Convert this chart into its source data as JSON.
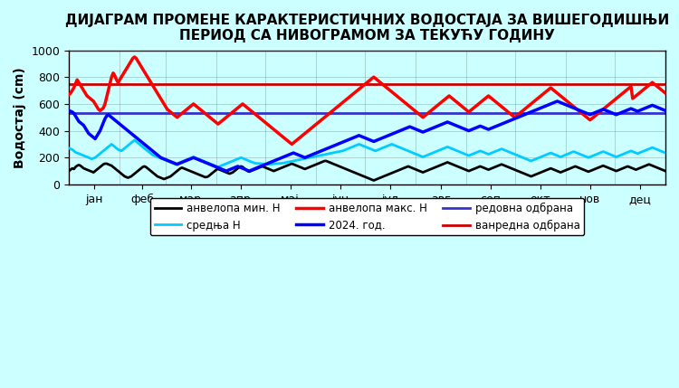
{
  "title": "ДИЈАГРАМ ПРОМЕНЕ КАРАКТЕРИСТИЧНИХ ВОДОСТАЈА ЗА ВИШЕГОДИШЊИ\nПЕРИОД СА НИВОГРАМОМ ЗА ТЕКУЋУ ГОДИНУ",
  "ylabel": "Водостај (cm)",
  "xlabel": "",
  "background_color": "#ccffff",
  "ylim": [
    0,
    1000
  ],
  "months": [
    "јан",
    "феб",
    "мар",
    "апр",
    "мај",
    "јун",
    "јул",
    "авг",
    "сеп",
    "окт",
    "нов",
    "дец"
  ],
  "redovna_odbrana": 530,
  "vanredna_odbrana": 750,
  "current_year_level": 530,
  "envelope_min": [
    100,
    110,
    120,
    115,
    130,
    140,
    145,
    140,
    130,
    120,
    115,
    110,
    105,
    100,
    95,
    90,
    100,
    110,
    120,
    130,
    140,
    150,
    155,
    155,
    150,
    145,
    140,
    130,
    120,
    110,
    100,
    90,
    80,
    70,
    60,
    55,
    50,
    55,
    60,
    70,
    80,
    90,
    100,
    110,
    120,
    130,
    135,
    130,
    120,
    110,
    100,
    90,
    80,
    70,
    60,
    55,
    50,
    45,
    40,
    45,
    50,
    55,
    60,
    70,
    80,
    90,
    100,
    110,
    120,
    125,
    120,
    115,
    110,
    105,
    100,
    95,
    90,
    85,
    80,
    75,
    70,
    65,
    60,
    55,
    55,
    60,
    70,
    80,
    90,
    100,
    110,
    115,
    110,
    105,
    100,
    95,
    90,
    85,
    80,
    85,
    90,
    100,
    110,
    120,
    130,
    135,
    130,
    120,
    110,
    100,
    95,
    100,
    105,
    110,
    115,
    120,
    125,
    130,
    135,
    130,
    125,
    120,
    115,
    110,
    105,
    100,
    105,
    110,
    115,
    120,
    125,
    130,
    135,
    140,
    145,
    150,
    155,
    150,
    145,
    140,
    135,
    130,
    125,
    120,
    115,
    120,
    125,
    130,
    135,
    140,
    145,
    150,
    155,
    160,
    165,
    170,
    175,
    175,
    170,
    165,
    160,
    155,
    150,
    145,
    140,
    135,
    130,
    125,
    120,
    115,
    110,
    105,
    100,
    95,
    90,
    85,
    80,
    75,
    70,
    65,
    60,
    55,
    50,
    45,
    40,
    35,
    30,
    35,
    40,
    45,
    50,
    55,
    60,
    65,
    70,
    75,
    80,
    85,
    90,
    95,
    100,
    105,
    110,
    115,
    120,
    125,
    130,
    135,
    130,
    125,
    120,
    115,
    110,
    105,
    100,
    95,
    90,
    95,
    100,
    105,
    110,
    115,
    120,
    125,
    130,
    135,
    140,
    145,
    150,
    155,
    160,
    165,
    160,
    155,
    150,
    145,
    140,
    135,
    130,
    125,
    120,
    115,
    110,
    105,
    100,
    105,
    110,
    115,
    120,
    125,
    130,
    135,
    130,
    125,
    120,
    115,
    110,
    115,
    120,
    125,
    130,
    135,
    140,
    145,
    150,
    145,
    140,
    135,
    130,
    125,
    120,
    115,
    110,
    105,
    100,
    95,
    90,
    85,
    80,
    75,
    70,
    65,
    60,
    65,
    70,
    75,
    80,
    85,
    90,
    95,
    100,
    105,
    110,
    115,
    120,
    115,
    110,
    105,
    100,
    95,
    90,
    95,
    100,
    105,
    110,
    115,
    120,
    125,
    130,
    135,
    130,
    125,
    120,
    115,
    110,
    105,
    100,
    95,
    100,
    105,
    110,
    115,
    120,
    125,
    130,
    135,
    140,
    135,
    130,
    125,
    120,
    115,
    110,
    105,
    100,
    105,
    110,
    115,
    120,
    125,
    130,
    135,
    130,
    125,
    120,
    115,
    110,
    115,
    120,
    125,
    130,
    135,
    140,
    145,
    150,
    145,
    140,
    135,
    130,
    125,
    120,
    115,
    110,
    105,
    100
  ],
  "envelope_max": [
    670,
    680,
    700,
    720,
    750,
    780,
    760,
    740,
    720,
    700,
    680,
    660,
    650,
    640,
    630,
    620,
    600,
    580,
    560,
    550,
    560,
    570,
    600,
    650,
    700,
    750,
    800,
    830,
    810,
    780,
    760,
    780,
    800,
    820,
    840,
    860,
    880,
    900,
    920,
    940,
    950,
    940,
    920,
    900,
    880,
    860,
    840,
    820,
    800,
    780,
    760,
    740,
    720,
    700,
    680,
    660,
    640,
    620,
    600,
    580,
    560,
    550,
    540,
    530,
    520,
    510,
    500,
    510,
    520,
    530,
    540,
    550,
    560,
    570,
    580,
    590,
    600,
    590,
    580,
    570,
    560,
    550,
    540,
    530,
    520,
    510,
    500,
    490,
    480,
    470,
    460,
    450,
    460,
    470,
    480,
    490,
    500,
    510,
    520,
    530,
    540,
    550,
    560,
    570,
    580,
    590,
    600,
    590,
    580,
    570,
    560,
    550,
    540,
    530,
    520,
    510,
    500,
    490,
    480,
    470,
    460,
    450,
    440,
    430,
    420,
    410,
    400,
    390,
    380,
    370,
    360,
    350,
    340,
    330,
    320,
    310,
    300,
    310,
    320,
    330,
    340,
    350,
    360,
    370,
    380,
    390,
    400,
    410,
    420,
    430,
    440,
    450,
    460,
    470,
    480,
    490,
    500,
    510,
    520,
    530,
    540,
    550,
    560,
    570,
    580,
    590,
    600,
    610,
    620,
    630,
    640,
    650,
    660,
    670,
    680,
    690,
    700,
    710,
    720,
    730,
    740,
    750,
    760,
    770,
    780,
    790,
    800,
    790,
    780,
    770,
    760,
    750,
    740,
    730,
    720,
    710,
    700,
    690,
    680,
    670,
    660,
    650,
    640,
    630,
    620,
    610,
    600,
    590,
    580,
    570,
    560,
    550,
    540,
    530,
    520,
    510,
    500,
    510,
    520,
    530,
    540,
    550,
    560,
    570,
    580,
    590,
    600,
    610,
    620,
    630,
    640,
    650,
    660,
    650,
    640,
    630,
    620,
    610,
    600,
    590,
    580,
    570,
    560,
    550,
    540,
    550,
    560,
    570,
    580,
    590,
    600,
    610,
    620,
    630,
    640,
    650,
    660,
    650,
    640,
    630,
    620,
    610,
    600,
    590,
    580,
    570,
    560,
    550,
    540,
    530,
    520,
    510,
    500,
    510,
    520,
    530,
    540,
    550,
    560,
    570,
    580,
    590,
    600,
    610,
    620,
    630,
    640,
    650,
    660,
    670,
    680,
    690,
    700,
    710,
    720,
    710,
    700,
    690,
    680,
    670,
    660,
    650,
    640,
    630,
    620,
    610,
    600,
    590,
    580,
    570,
    560,
    550,
    540,
    530,
    520,
    510,
    500,
    490,
    480,
    490,
    500,
    510,
    520,
    530,
    540,
    550,
    560,
    570,
    580,
    590,
    600,
    610,
    620,
    630,
    640,
    650,
    660,
    670,
    680,
    690,
    700,
    710,
    720,
    730,
    640,
    650,
    660,
    670,
    680,
    690,
    700,
    710,
    720,
    730,
    740,
    750,
    760,
    750,
    740,
    730,
    720,
    710,
    700,
    690,
    680
  ],
  "mean": [
    270,
    265,
    260,
    250,
    240,
    235,
    230,
    225,
    220,
    215,
    210,
    205,
    200,
    195,
    190,
    195,
    200,
    210,
    220,
    230,
    240,
    250,
    260,
    270,
    280,
    290,
    300,
    290,
    280,
    270,
    260,
    255,
    250,
    260,
    270,
    280,
    290,
    300,
    310,
    320,
    330,
    320,
    310,
    300,
    290,
    280,
    270,
    260,
    250,
    240,
    230,
    220,
    215,
    210,
    205,
    200,
    195,
    190,
    185,
    180,
    175,
    170,
    165,
    160,
    155,
    150,
    155,
    160,
    165,
    170,
    175,
    180,
    185,
    190,
    195,
    200,
    205,
    200,
    195,
    190,
    185,
    180,
    175,
    170,
    165,
    160,
    155,
    150,
    145,
    140,
    135,
    130,
    135,
    140,
    145,
    150,
    155,
    160,
    165,
    170,
    175,
    180,
    185,
    190,
    195,
    200,
    195,
    190,
    185,
    180,
    175,
    170,
    165,
    160,
    158,
    157,
    156,
    155,
    154,
    153,
    152,
    151,
    150,
    151,
    152,
    153,
    154,
    155,
    156,
    157,
    158,
    160,
    162,
    165,
    168,
    170,
    172,
    175,
    178,
    180,
    183,
    185,
    188,
    190,
    193,
    195,
    198,
    200,
    203,
    205,
    208,
    210,
    213,
    215,
    218,
    220,
    222,
    225,
    228,
    230,
    233,
    235,
    238,
    240,
    243,
    245,
    248,
    250,
    255,
    260,
    265,
    270,
    275,
    280,
    285,
    290,
    295,
    300,
    295,
    290,
    285,
    280,
    275,
    270,
    265,
    260,
    255,
    250,
    255,
    260,
    265,
    270,
    275,
    280,
    285,
    290,
    295,
    300,
    295,
    290,
    285,
    280,
    275,
    270,
    265,
    260,
    255,
    250,
    245,
    240,
    235,
    230,
    225,
    220,
    215,
    210,
    205,
    210,
    215,
    220,
    225,
    230,
    235,
    240,
    245,
    250,
    255,
    260,
    265,
    270,
    275,
    280,
    275,
    270,
    265,
    260,
    255,
    250,
    245,
    240,
    235,
    230,
    225,
    220,
    215,
    220,
    225,
    230,
    235,
    240,
    245,
    250,
    245,
    240,
    235,
    230,
    225,
    230,
    235,
    240,
    245,
    250,
    255,
    260,
    265,
    260,
    255,
    250,
    245,
    240,
    235,
    230,
    225,
    220,
    215,
    210,
    205,
    200,
    195,
    190,
    185,
    180,
    175,
    180,
    185,
    190,
    195,
    200,
    205,
    210,
    215,
    220,
    225,
    230,
    235,
    230,
    225,
    220,
    215,
    210,
    205,
    210,
    215,
    220,
    225,
    230,
    235,
    240,
    245,
    240,
    235,
    230,
    225,
    220,
    215,
    210,
    205,
    200,
    205,
    210,
    215,
    220,
    225,
    230,
    235,
    240,
    245,
    240,
    235,
    230,
    225,
    220,
    215,
    210,
    205,
    210,
    215,
    220,
    225,
    230,
    235,
    240,
    245,
    250,
    245,
    240,
    235,
    230,
    235,
    240,
    245,
    250,
    255,
    260,
    265,
    270,
    275,
    270,
    265,
    260,
    255,
    250,
    245,
    240,
    235
  ],
  "current_year": [
    550,
    545,
    540,
    530,
    510,
    490,
    470,
    460,
    450,
    440,
    420,
    400,
    380,
    370,
    360,
    350,
    340,
    360,
    380,
    400,
    430,
    460,
    490,
    510,
    520,
    510,
    500,
    490,
    480,
    470,
    460,
    450,
    440,
    430,
    420,
    410,
    400,
    390,
    380,
    370,
    360,
    350,
    340,
    330,
    320,
    310,
    300,
    290,
    280,
    270,
    260,
    250,
    240,
    230,
    220,
    210,
    200,
    195,
    190,
    185,
    180,
    175,
    170,
    165,
    160,
    155,
    150,
    155,
    160,
    165,
    170,
    175,
    180,
    185,
    190,
    195,
    200,
    195,
    190,
    185,
    180,
    175,
    170,
    165,
    160,
    155,
    150,
    145,
    140,
    135,
    130,
    125,
    120,
    115,
    110,
    105,
    100,
    105,
    110,
    115,
    120,
    125,
    130,
    135,
    130,
    125,
    120,
    115,
    110,
    105,
    100,
    105,
    110,
    115,
    120,
    125,
    130,
    135,
    140,
    145,
    150,
    155,
    160,
    165,
    170,
    175,
    180,
    185,
    190,
    195,
    200,
    205,
    210,
    215,
    220,
    225,
    230,
    235,
    230,
    225,
    220,
    215,
    210,
    205,
    200,
    205,
    210,
    215,
    220,
    225,
    230,
    235,
    240,
    245,
    250,
    255,
    260,
    265,
    270,
    275,
    280,
    285,
    290,
    295,
    300,
    305,
    310,
    315,
    320,
    325,
    330,
    335,
    340,
    345,
    350,
    355,
    360,
    365,
    360,
    355,
    350,
    345,
    340,
    335,
    330,
    325,
    320,
    325,
    330,
    335,
    340,
    345,
    350,
    355,
    360,
    365,
    370,
    375,
    380,
    385,
    390,
    395,
    400,
    405,
    410,
    415,
    420,
    425,
    430,
    425,
    420,
    415,
    410,
    405,
    400,
    395,
    390,
    395,
    400,
    405,
    410,
    415,
    420,
    425,
    430,
    435,
    440,
    445,
    450,
    455,
    460,
    465,
    460,
    455,
    450,
    445,
    440,
    435,
    430,
    425,
    420,
    415,
    410,
    405,
    400,
    405,
    410,
    415,
    420,
    425,
    430,
    435,
    430,
    425,
    420,
    415,
    410,
    415,
    420,
    425,
    430,
    435,
    440,
    445,
    450,
    455,
    460,
    465,
    470,
    475,
    480,
    485,
    490,
    495,
    500,
    505,
    510,
    515,
    520,
    525,
    530,
    535,
    540,
    545,
    550,
    555,
    560,
    565,
    570,
    575,
    580,
    585,
    590,
    595,
    600,
    605,
    610,
    615,
    620,
    615,
    610,
    605,
    600,
    595,
    590,
    585,
    580,
    575,
    570,
    565,
    560,
    555,
    550,
    545,
    540,
    535,
    530,
    525,
    520,
    525,
    530,
    535,
    540,
    545,
    550,
    555,
    560,
    555,
    550,
    545,
    540,
    535,
    530,
    525,
    520,
    525,
    530,
    535,
    540,
    545,
    550,
    555,
    560,
    565,
    560,
    555,
    550,
    545,
    550,
    555,
    560,
    565,
    570,
    575,
    580,
    585,
    590,
    585,
    580,
    575,
    570,
    565,
    560,
    555,
    550
  ],
  "n_points": 365,
  "line_colors": {
    "envelope_min": "#000000",
    "envelope_max": "#ff0000",
    "mean": "#00ccff",
    "current_year": "#0000ff",
    "redovna": "#3333cc",
    "vanredna": "#cc0000"
  },
  "line_widths": {
    "envelope_min": 2.0,
    "envelope_max": 2.5,
    "mean": 2.0,
    "current_year": 2.5,
    "redovna": 2.0,
    "vanredna": 2.0
  },
  "legend_labels": {
    "envelope_min": "анвелопа мин. H",
    "mean": "средња H",
    "envelope_max": "анвелопа макс. H",
    "current_year": "2024. год.",
    "redovna": "редовна одбрана",
    "vanredna": "ванредна одбрана"
  },
  "title_fontsize": 11,
  "axis_label_fontsize": 10,
  "tick_fontsize": 9
}
